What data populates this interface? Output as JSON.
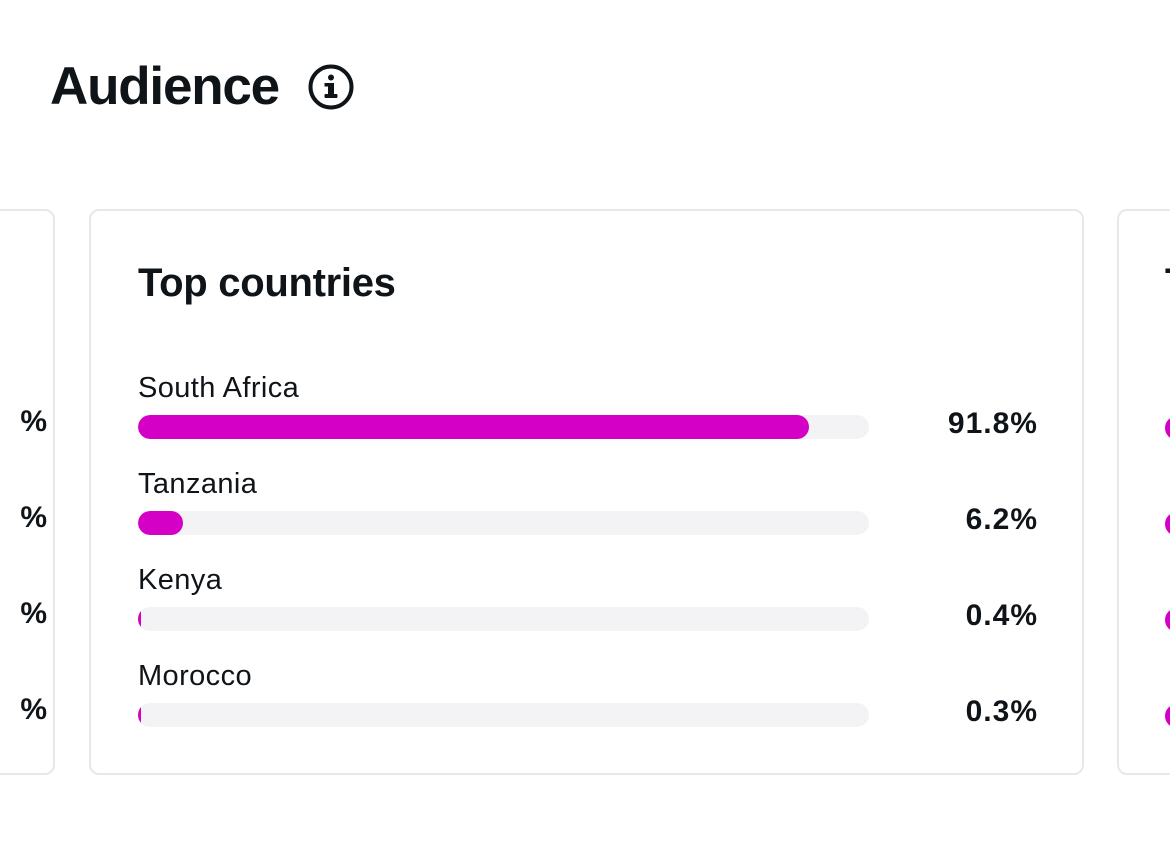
{
  "section": {
    "title": "Audience"
  },
  "icons": {
    "info": "info-icon"
  },
  "colors": {
    "accent": "#d400c6",
    "track": "#f3f3f5",
    "border": "#e6e8ea",
    "text": "#0f1419"
  },
  "top_countries": {
    "title": "Top countries",
    "rows": [
      {
        "name": "South Africa",
        "percent_label": "91.8%",
        "value": 91.8
      },
      {
        "name": "Tanzania",
        "percent_label": "6.2%",
        "value": 6.2
      },
      {
        "name": "Kenya",
        "percent_label": "0.4%",
        "value": 0.4
      },
      {
        "name": "Morocco",
        "percent_label": "0.3%",
        "value": 0.3
      }
    ]
  }
}
